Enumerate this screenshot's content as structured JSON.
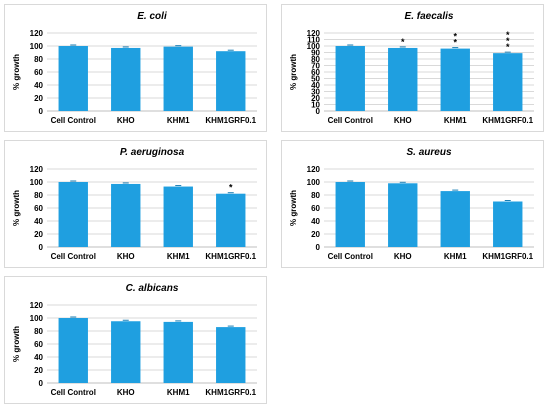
{
  "colors": {
    "bar": "#1f9fe0",
    "gridline": "#d9d9d9",
    "axis": "#bfbfbf",
    "text": "#000000"
  },
  "chart_data": [
    {
      "type": "bar",
      "title": "E. coli",
      "ylabel": "% growth",
      "categories": [
        "Cell Control",
        "KHO",
        "KHM1",
        "KHM1GRF0.1"
      ],
      "values": [
        100,
        97,
        99,
        92
      ],
      "ylim": [
        0,
        120
      ],
      "yticks": [
        "0",
        "20",
        "40",
        "60",
        "80",
        "100",
        "120"
      ],
      "significance": [
        "",
        "",
        "",
        ""
      ],
      "grid": true
    },
    {
      "type": "bar",
      "title": "E. faecalis",
      "ylabel": "% growth",
      "categories": [
        "Cell Control",
        "KHO",
        "KHM1",
        "KHM1GRF0.1"
      ],
      "values": [
        100,
        97,
        96,
        89
      ],
      "ylim": [
        0,
        120
      ],
      "yticks": [
        "0",
        "10",
        "20",
        "30",
        "40",
        "50",
        "60",
        "70",
        "80",
        "90",
        "100",
        "110",
        "120"
      ],
      "significance": [
        "",
        "*",
        "**",
        "***"
      ],
      "grid": true
    },
    {
      "type": "bar",
      "title": "P. aeruginosa",
      "ylabel": "% growth",
      "categories": [
        "Cell Control",
        "KHO",
        "KHM1",
        "KHM1GRF0.1"
      ],
      "values": [
        100,
        97,
        93,
        82
      ],
      "ylim": [
        0,
        120
      ],
      "yticks": [
        "0",
        "20",
        "40",
        "60",
        "80",
        "100",
        "120"
      ],
      "significance": [
        "",
        "",
        "",
        "*"
      ],
      "grid": true
    },
    {
      "type": "bar",
      "title": "S. aureus",
      "ylabel": "% growth",
      "categories": [
        "Cell Control",
        "KHO",
        "KHM1",
        "KHM1GRF0.1"
      ],
      "values": [
        100,
        98,
        86,
        70
      ],
      "ylim": [
        0,
        120
      ],
      "yticks": [
        "0",
        "20",
        "40",
        "60",
        "80",
        "100",
        "120"
      ],
      "significance": [
        "",
        "",
        "",
        ""
      ],
      "grid": true
    },
    {
      "type": "bar",
      "title": "C. albicans",
      "ylabel": "% growth",
      "categories": [
        "Cell Control",
        "KHO",
        "KHM1",
        "KHM1GRF0.1"
      ],
      "values": [
        100,
        95,
        94,
        86
      ],
      "ylim": [
        0,
        120
      ],
      "yticks": [
        "0",
        "20",
        "40",
        "60",
        "80",
        "100",
        "120"
      ],
      "significance": [
        "",
        "",
        "",
        ""
      ],
      "grid": true
    }
  ]
}
